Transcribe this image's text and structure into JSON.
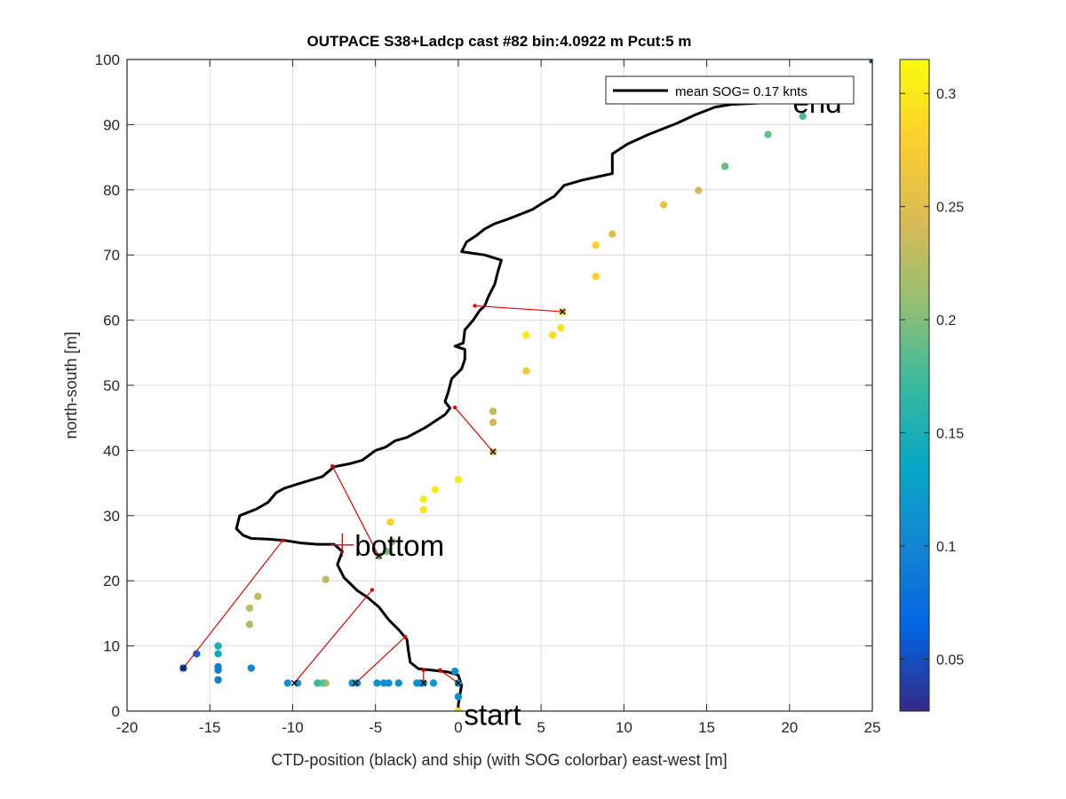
{
  "chart_data": {
    "type": "scatter",
    "title": "OUTPACE S38+Ladcp cast #82 bin:4.0922 m  Pcut:5 m",
    "xlabel": "CTD-position (black) and ship (with SOG colorbar) east-west [m]",
    "ylabel": "north-south [m]",
    "xlim": [
      -20,
      25
    ],
    "ylim": [
      0,
      100
    ],
    "xticks": [
      -20,
      -15,
      -10,
      -5,
      0,
      5,
      10,
      15,
      20,
      25
    ],
    "yticks": [
      0,
      10,
      20,
      30,
      40,
      50,
      60,
      70,
      80,
      90,
      100
    ],
    "grid": true,
    "legend": {
      "label": "mean SOG=  0.17 knts",
      "location": "top-right"
    },
    "colorbar": {
      "min": 0.027,
      "max": 0.315,
      "ticks": [
        0.05,
        0.1,
        0.15,
        0.2,
        0.25,
        0.3
      ],
      "colormap": "parula"
    },
    "annotations": [
      {
        "text": "start",
        "x": 0.35,
        "y": -0.5
      },
      {
        "text": "bottom",
        "x": -6.9,
        "y": 25.5
      },
      {
        "text": "end",
        "x": 20.2,
        "y": 91.8
      }
    ],
    "ctd_track": [
      [
        0,
        0
      ],
      [
        0,
        1
      ],
      [
        0.1,
        2.5
      ],
      [
        0.2,
        4
      ],
      [
        0,
        5.5
      ],
      [
        -0.6,
        6
      ],
      [
        -1.3,
        6.2
      ],
      [
        -2.4,
        6.5
      ],
      [
        -2.9,
        7.5
      ],
      [
        -3,
        9
      ],
      [
        -3.1,
        11
      ],
      [
        -3.6,
        12.5
      ],
      [
        -4.2,
        14
      ],
      [
        -4.8,
        16
      ],
      [
        -5.5,
        17.5
      ],
      [
        -6.1,
        18.5
      ],
      [
        -6.9,
        20.5
      ],
      [
        -7.3,
        22.5
      ],
      [
        -7.0,
        24.5
      ],
      [
        -7.5,
        25.6
      ],
      [
        -8.5,
        25.6
      ],
      [
        -9.5,
        25.8
      ],
      [
        -10.5,
        26.2
      ],
      [
        -11.5,
        26.4
      ],
      [
        -12.5,
        26.5
      ],
      [
        -13,
        27
      ],
      [
        -13.4,
        28
      ],
      [
        -13.2,
        30
      ],
      [
        -12.2,
        31
      ],
      [
        -11.5,
        32
      ],
      [
        -11.0,
        33.5
      ],
      [
        -10.5,
        34.2
      ],
      [
        -9.5,
        35
      ],
      [
        -8.2,
        36
      ],
      [
        -7.5,
        37.5
      ],
      [
        -6.5,
        38
      ],
      [
        -5.8,
        38.5
      ],
      [
        -5,
        40
      ],
      [
        -4.4,
        40.5
      ],
      [
        -3.8,
        41.5
      ],
      [
        -3.1,
        42
      ],
      [
        -2.0,
        43.5
      ],
      [
        -0.8,
        45.5
      ],
      [
        -0.5,
        46.5
      ],
      [
        -0.8,
        47.5
      ],
      [
        -0.6,
        49
      ],
      [
        -0.4,
        51
      ],
      [
        0.2,
        52.5
      ],
      [
        0.4,
        54
      ],
      [
        0.4,
        55.5
      ],
      [
        -0.2,
        56
      ],
      [
        0.3,
        56.5
      ],
      [
        0.4,
        58.5
      ],
      [
        0.9,
        60
      ],
      [
        1.3,
        61.5
      ],
      [
        1.6,
        62.2
      ],
      [
        1.8,
        63.5
      ],
      [
        2.2,
        65.5
      ],
      [
        2.4,
        67.5
      ],
      [
        2.6,
        69.2
      ],
      [
        1.6,
        70
      ],
      [
        0.2,
        70.5
      ],
      [
        0.5,
        72
      ],
      [
        1.1,
        73
      ],
      [
        1.6,
        74
      ],
      [
        2.2,
        74.8
      ],
      [
        3,
        75.5
      ],
      [
        3.8,
        76.3
      ],
      [
        4.5,
        77
      ],
      [
        5.1,
        78
      ],
      [
        5.8,
        79
      ],
      [
        6.4,
        80.7
      ],
      [
        7.5,
        81.5
      ],
      [
        9.3,
        82.5
      ],
      [
        9.3,
        85.5
      ],
      [
        10.2,
        87
      ],
      [
        11.5,
        88.5
      ],
      [
        13.2,
        90.2
      ],
      [
        14.3,
        91.5
      ],
      [
        15.5,
        92.7
      ],
      [
        16.5,
        93.1
      ],
      [
        18,
        93.3
      ],
      [
        21.5,
        93.8
      ]
    ],
    "ship_points": [
      {
        "x": 0,
        "y": 0,
        "sog": 0.28
      },
      {
        "x": 0,
        "y": 2.2,
        "sog": 0.11
      },
      {
        "x": 0,
        "y": 4.3,
        "sog": 0.11
      },
      {
        "x": -0.2,
        "y": 6.1,
        "sog": 0.11
      },
      {
        "x": -1.5,
        "y": 4.3,
        "sog": 0.12
      },
      {
        "x": -2.1,
        "y": 4.3,
        "sog": 0.11
      },
      {
        "x": -2.3,
        "y": 4.3,
        "sog": 0.12
      },
      {
        "x": -2.5,
        "y": 4.3,
        "sog": 0.11
      },
      {
        "x": -3.6,
        "y": 4.3,
        "sog": 0.11
      },
      {
        "x": -4.2,
        "y": 4.3,
        "sog": 0.11
      },
      {
        "x": -4.5,
        "y": 4.3,
        "sog": 0.11
      },
      {
        "x": -4.9,
        "y": 4.3,
        "sog": 0.11
      },
      {
        "x": -6.1,
        "y": 4.3,
        "sog": 0.11
      },
      {
        "x": -6.4,
        "y": 4.3,
        "sog": 0.11
      },
      {
        "x": -8.0,
        "y": 4.3,
        "sog": 0.22
      },
      {
        "x": -8.2,
        "y": 4.3,
        "sog": 0.19
      },
      {
        "x": -8.5,
        "y": 4.3,
        "sog": 0.17
      },
      {
        "x": -9.7,
        "y": 4.3,
        "sog": 0.11
      },
      {
        "x": -10.3,
        "y": 4.3,
        "sog": 0.11
      },
      {
        "x": -12.5,
        "y": 6.6,
        "sog": 0.1
      },
      {
        "x": -14.5,
        "y": 4.8,
        "sog": 0.09
      },
      {
        "x": -14.5,
        "y": 6.3,
        "sog": 0.09
      },
      {
        "x": -14.5,
        "y": 6.8,
        "sog": 0.09
      },
      {
        "x": -14.5,
        "y": 8.8,
        "sog": 0.14
      },
      {
        "x": -14.5,
        "y": 10.0,
        "sog": 0.15
      },
      {
        "x": -15.8,
        "y": 8.8,
        "sog": 0.07
      },
      {
        "x": -16.6,
        "y": 6.6,
        "sog": 0.06
      },
      {
        "x": -12.6,
        "y": 13.3,
        "sog": 0.22
      },
      {
        "x": -12.6,
        "y": 15.8,
        "sog": 0.23
      },
      {
        "x": -12.1,
        "y": 17.6,
        "sog": 0.23
      },
      {
        "x": -8.0,
        "y": 20.2,
        "sog": 0.23
      },
      {
        "x": -4.8,
        "y": 23.8,
        "sog": 0.22
      },
      {
        "x": -4.3,
        "y": 24.5,
        "sog": 0.2
      },
      {
        "x": -4.0,
        "y": 26.0,
        "sog": 0.21
      },
      {
        "x": -4.1,
        "y": 29.0,
        "sog": 0.28
      },
      {
        "x": -2.1,
        "y": 30.9,
        "sog": 0.3
      },
      {
        "x": -2.1,
        "y": 32.5,
        "sog": 0.3
      },
      {
        "x": -1.4,
        "y": 34.0,
        "sog": 0.3
      },
      {
        "x": 0,
        "y": 35.5,
        "sog": 0.3
      },
      {
        "x": 2.1,
        "y": 39.8,
        "sog": 0.26
      },
      {
        "x": 2.1,
        "y": 44.3,
        "sog": 0.24
      },
      {
        "x": 2.1,
        "y": 46.0,
        "sog": 0.23
      },
      {
        "x": 4.1,
        "y": 52.2,
        "sog": 0.27
      },
      {
        "x": 4.1,
        "y": 57.7,
        "sog": 0.3
      },
      {
        "x": 5.7,
        "y": 57.7,
        "sog": 0.29
      },
      {
        "x": 6.2,
        "y": 58.8,
        "sog": 0.29
      },
      {
        "x": 6.3,
        "y": 61.3,
        "sog": 0.28
      },
      {
        "x": 8.3,
        "y": 66.7,
        "sog": 0.28
      },
      {
        "x": 8.3,
        "y": 71.5,
        "sog": 0.28
      },
      {
        "x": 9.3,
        "y": 73.2,
        "sog": 0.25
      },
      {
        "x": 12.4,
        "y": 77.7,
        "sog": 0.26
      },
      {
        "x": 14.5,
        "y": 79.9,
        "sog": 0.24
      },
      {
        "x": 16.1,
        "y": 83.6,
        "sog": 0.19
      },
      {
        "x": 18.7,
        "y": 88.5,
        "sog": 0.19
      },
      {
        "x": 20.8,
        "y": 91.3,
        "sog": 0.18
      },
      {
        "x": 25.0,
        "y": 99.9,
        "sog": 0.17
      }
    ],
    "ctd_ship_links": [
      {
        "ctd": [
          25.0,
          99.9
        ],
        "ship": [
          25.0,
          99.9
        ]
      },
      {
        "ctd": [
          1.0,
          62.2
        ],
        "ship": [
          6.3,
          61.3
        ]
      },
      {
        "ctd": [
          -0.2,
          46.6
        ],
        "ship": [
          2.1,
          39.8
        ]
      },
      {
        "ctd": [
          -7.6,
          37.6
        ],
        "ship": [
          -4.8,
          23.8
        ]
      },
      {
        "ctd": [
          -10.6,
          26.2
        ],
        "ship": [
          -16.6,
          6.6
        ]
      },
      {
        "ctd": [
          -5.2,
          18.6
        ],
        "ship": [
          -9.9,
          4.3
        ]
      },
      {
        "ctd": [
          -3.2,
          11.4
        ],
        "ship": [
          -6.2,
          4.3
        ]
      },
      {
        "ctd": [
          -2.1,
          6.3
        ],
        "ship": [
          -2.1,
          4.3
        ]
      },
      {
        "ctd": [
          -1.1,
          6.3
        ],
        "ship": [
          0,
          4.3
        ]
      }
    ]
  }
}
